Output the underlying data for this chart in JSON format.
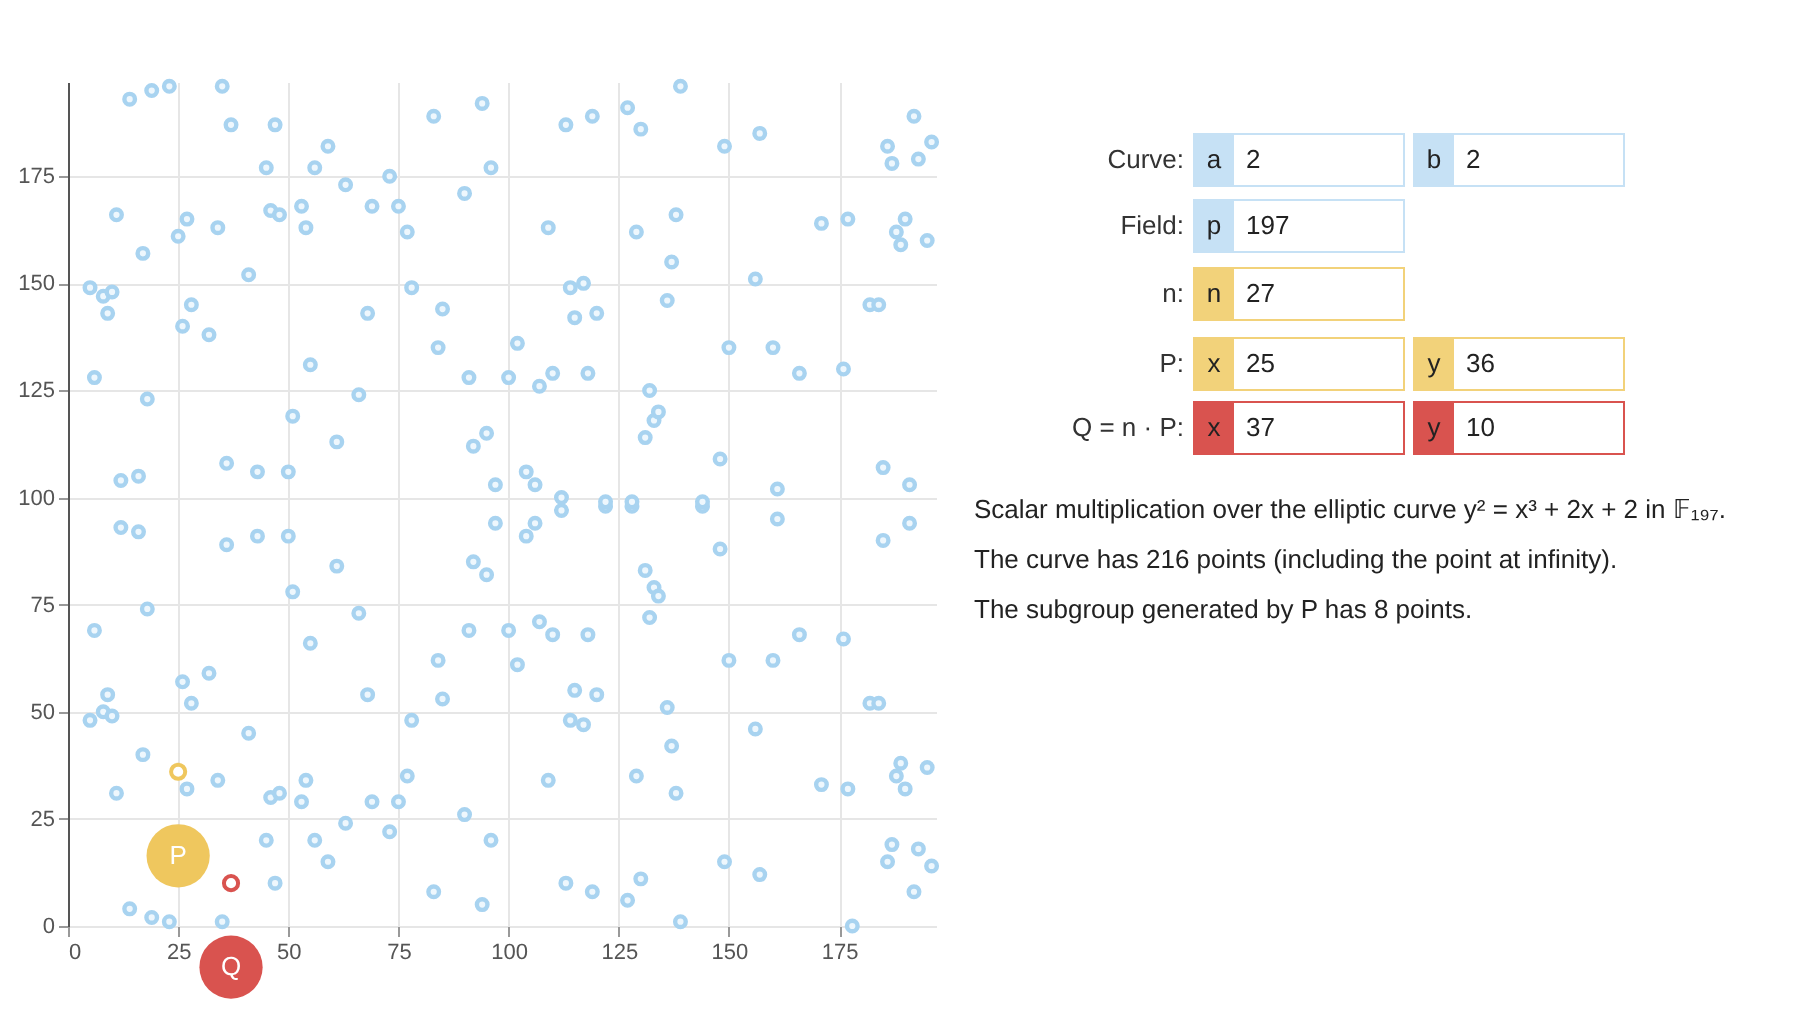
{
  "chart_data": [
    {
      "type": "scatter",
      "xlim": [
        0,
        197
      ],
      "ylim": [
        0,
        197
      ],
      "xticks": [
        0,
        25,
        50,
        75,
        100,
        125,
        150,
        175
      ],
      "yticks": [
        0,
        25,
        50,
        75,
        100,
        125,
        150,
        175
      ],
      "grid": true,
      "marker": "circle",
      "legend": false,
      "series": [
        {
          "color": "#a8d3f0",
          "x": [
            5,
            5,
            6,
            6,
            8,
            8,
            9,
            9,
            10,
            10,
            11,
            11,
            12,
            12,
            14,
            14,
            16,
            16,
            17,
            17,
            18,
            18,
            19,
            19,
            23,
            23,
            25,
            26,
            26,
            27,
            27,
            28,
            28,
            32,
            32,
            34,
            34,
            35,
            35,
            36,
            36,
            37,
            41,
            41,
            43,
            43,
            45,
            45,
            46,
            46,
            47,
            47,
            48,
            48,
            50,
            50,
            51,
            51,
            53,
            53,
            54,
            54,
            55,
            55,
            56,
            56,
            59,
            59,
            61,
            61,
            63,
            63,
            66,
            66,
            68,
            68,
            69,
            69,
            73,
            73,
            75,
            75,
            77,
            77,
            78,
            78,
            83,
            83,
            84,
            84,
            85,
            85,
            90,
            90,
            91,
            91,
            92,
            92,
            94,
            94,
            95,
            95,
            96,
            96,
            97,
            97,
            100,
            100,
            102,
            102,
            104,
            104,
            106,
            106,
            107,
            107,
            109,
            109,
            110,
            110,
            112,
            112,
            113,
            113,
            114,
            114,
            115,
            115,
            117,
            117,
            118,
            118,
            119,
            119,
            120,
            120,
            122,
            122,
            127,
            127,
            128,
            128,
            129,
            129,
            130,
            130,
            131,
            131,
            132,
            132,
            133,
            133,
            134,
            134,
            136,
            136,
            137,
            137,
            138,
            138,
            139,
            139,
            144,
            144,
            148,
            148,
            149,
            149,
            150,
            150,
            156,
            156,
            157,
            157,
            160,
            160,
            161,
            161,
            166,
            166,
            171,
            171,
            176,
            176,
            177,
            177,
            178,
            182,
            182,
            184,
            184,
            185,
            185,
            186,
            186,
            187,
            187,
            188,
            188,
            189,
            189,
            190,
            190,
            191,
            191,
            192,
            192,
            193,
            193,
            195,
            195,
            196,
            196
          ],
          "values": [
            48,
            149,
            69,
            128,
            50,
            147,
            54,
            143,
            49,
            148,
            31,
            166,
            93,
            104,
            4,
            193,
            92,
            105,
            40,
            157,
            74,
            123,
            2,
            195,
            1,
            196,
            161,
            57,
            140,
            32,
            165,
            52,
            145,
            59,
            138,
            34,
            163,
            1,
            196,
            89,
            108,
            187,
            45,
            152,
            91,
            106,
            20,
            177,
            30,
            167,
            10,
            187,
            31,
            166,
            91,
            106,
            78,
            119,
            29,
            168,
            34,
            163,
            66,
            131,
            20,
            177,
            15,
            182,
            84,
            113,
            24,
            173,
            73,
            124,
            54,
            143,
            29,
            168,
            22,
            175,
            29,
            168,
            35,
            162,
            48,
            149,
            8,
            189,
            62,
            135,
            53,
            144,
            26,
            171,
            69,
            128,
            85,
            112,
            5,
            192,
            82,
            115,
            20,
            177,
            94,
            103,
            69,
            128,
            61,
            136,
            91,
            106,
            94,
            103,
            71,
            126,
            34,
            163,
            68,
            129,
            97,
            100,
            10,
            187,
            48,
            149,
            55,
            142,
            47,
            150,
            68,
            129,
            8,
            189,
            54,
            143,
            98,
            99,
            6,
            191,
            98,
            99,
            35,
            162,
            11,
            186,
            83,
            114,
            72,
            125,
            79,
            118,
            77,
            120,
            51,
            146,
            42,
            155,
            31,
            166,
            1,
            196,
            98,
            99,
            88,
            109,
            15,
            182,
            62,
            135,
            46,
            151,
            12,
            185,
            62,
            135,
            95,
            102,
            68,
            129,
            33,
            164,
            67,
            130,
            32,
            165,
            0,
            52,
            145,
            52,
            145,
            90,
            107,
            15,
            182,
            19,
            178,
            35,
            162,
            38,
            159,
            32,
            165,
            94,
            103,
            8,
            189,
            18,
            179,
            37,
            160,
            14,
            183
          ]
        },
        {
          "name": "P",
          "color": "#efc75e",
          "x": [
            25
          ],
          "values": [
            36
          ]
        },
        {
          "name": "Q",
          "color": "#d9534f",
          "x": [
            37
          ],
          "values": [
            10
          ]
        }
      ]
    },
    {
      "type": "other",
      "annotations": [
        "Curve:",
        "a",
        "2",
        "b",
        "2",
        "Field:",
        "p",
        "197",
        "n:",
        "n",
        "27",
        "P:",
        "x",
        "25",
        "y",
        "36",
        "Q = n · P:",
        "x",
        "37",
        "y",
        "10",
        "Scalar multiplication over the elliptic curve y² = x³ + 2x + 2 in 𝔽₁₉₇.",
        "The curve has 216 points (including the point at infinity).",
        "The subgroup generated by P has 8 points."
      ]
    }
  ]
}
